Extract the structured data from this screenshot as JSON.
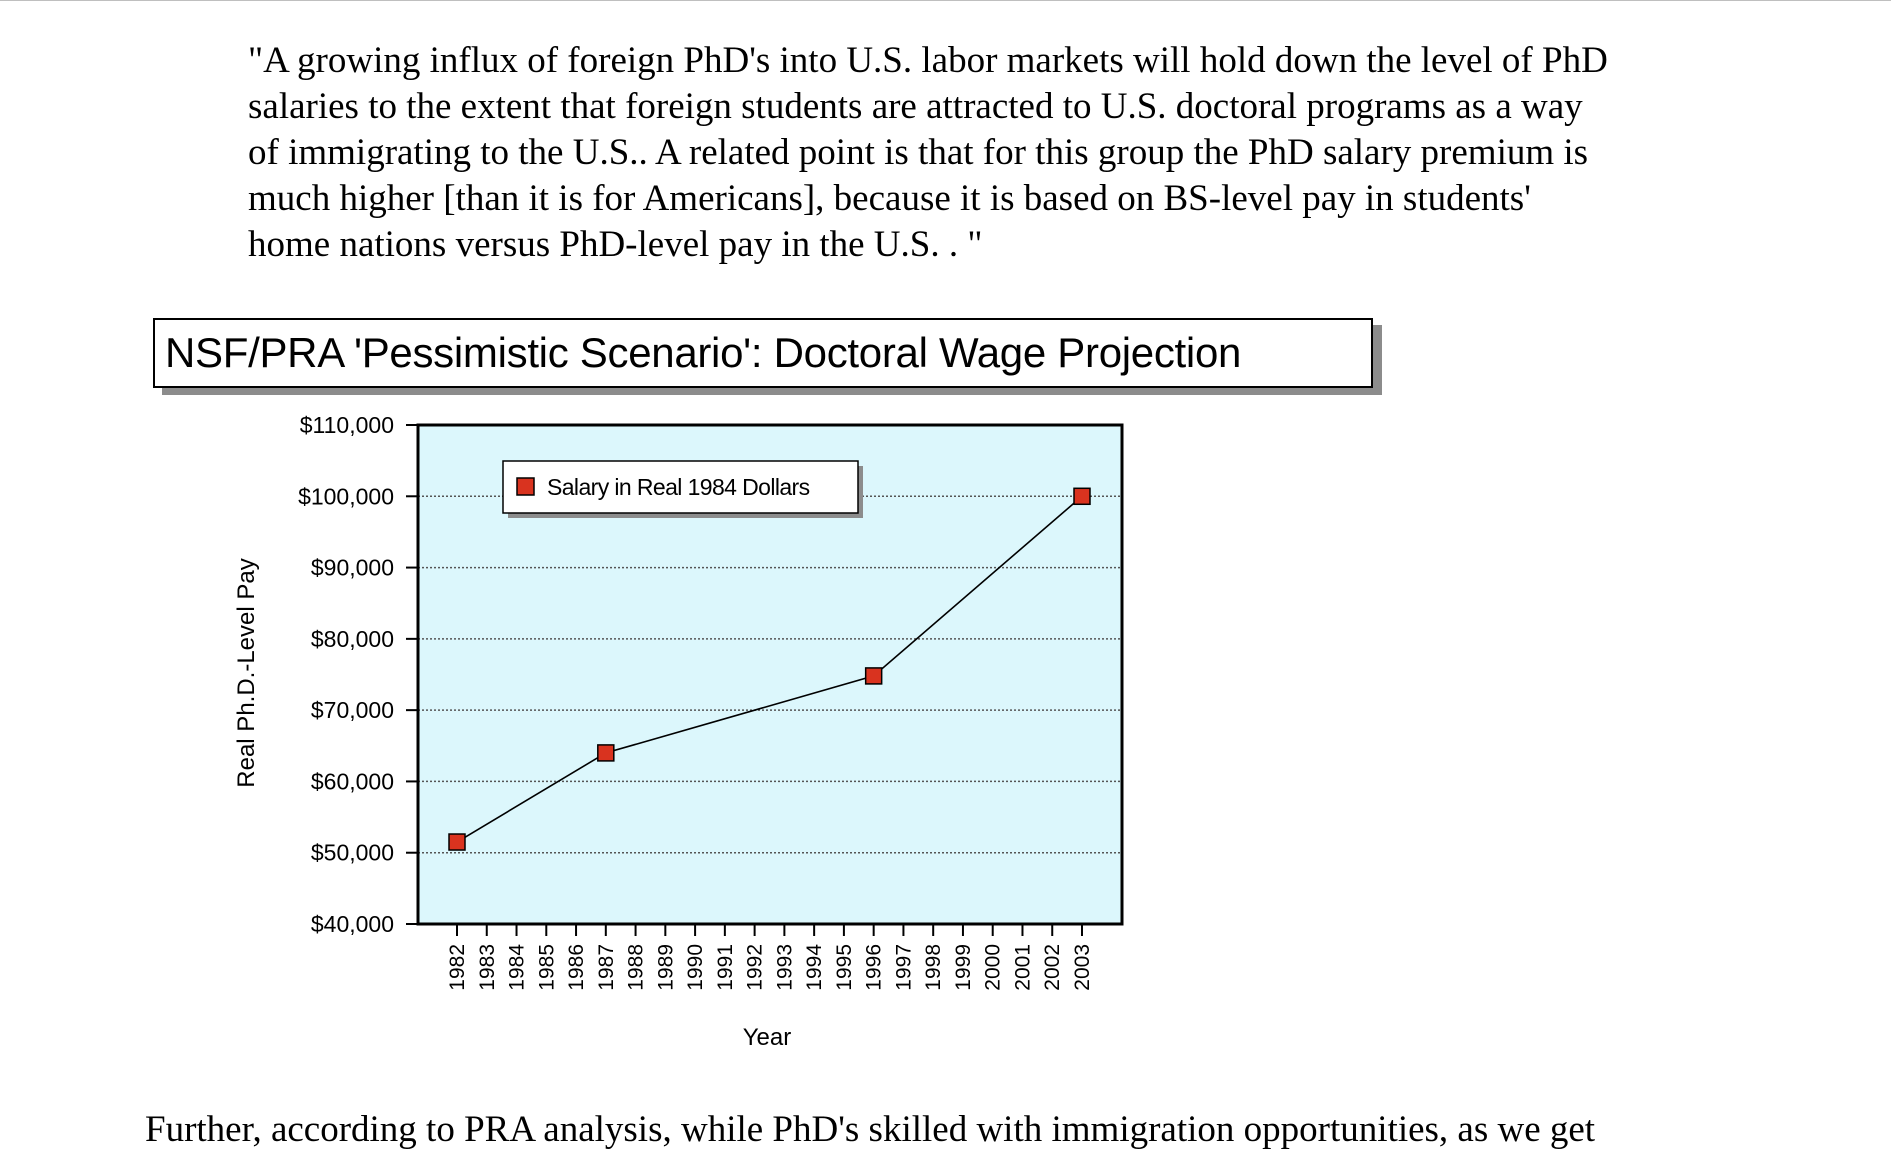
{
  "quote": {
    "lines": [
      "\"A growing influx of foreign PhD's into U.S. labor markets will hold down the level of PhD",
      "salaries to the extent that foreign students are attracted to U.S. doctoral programs as a way",
      "of immigrating to the U.S.. A related point is that for this group the PhD salary premium is",
      "much higher [than it is for Americans], because it is based on BS-level pay in students'",
      "home nations versus PhD-level pay in the U.S. . \""
    ]
  },
  "chart_data": {
    "type": "line",
    "title": "NSF/PRA 'Pessimistic Scenario': Doctoral Wage Projection",
    "xlabel": "Year",
    "ylabel": "Real Ph.D.-Level Pay",
    "x": [
      "1982",
      "1983",
      "1984",
      "1985",
      "1986",
      "1987",
      "1988",
      "1989",
      "1990",
      "1991",
      "1992",
      "1993",
      "1994",
      "1995",
      "1996",
      "1997",
      "1998",
      "1999",
      "2000",
      "2001",
      "2002",
      "2003"
    ],
    "ylim": [
      40000,
      110000
    ],
    "y_ticks": [
      {
        "value": 40000,
        "label": "$40,000"
      },
      {
        "value": 50000,
        "label": "$50,000"
      },
      {
        "value": 60000,
        "label": "$60,000"
      },
      {
        "value": 70000,
        "label": "$70,000"
      },
      {
        "value": 80000,
        "label": "$80,000"
      },
      {
        "value": 90000,
        "label": "$90,000"
      },
      {
        "value": 100000,
        "label": "$100,000"
      },
      {
        "value": 110000,
        "label": "$110,000"
      }
    ],
    "grid": true,
    "legend_position": "top-left",
    "plot_background": "#dcf7fc",
    "series": [
      {
        "name": "Salary in Real 1984 Dollars",
        "color": "#d9331f",
        "points": [
          {
            "x": "1982",
            "y": 51500
          },
          {
            "x": "1987",
            "y": 64000
          },
          {
            "x": "1996",
            "y": 74800
          },
          {
            "x": "2003",
            "y": 100000
          }
        ]
      }
    ]
  },
  "bottom_text": "Further, according to PRA analysis, while PhD's skilled with immigration opportunities, as we get"
}
